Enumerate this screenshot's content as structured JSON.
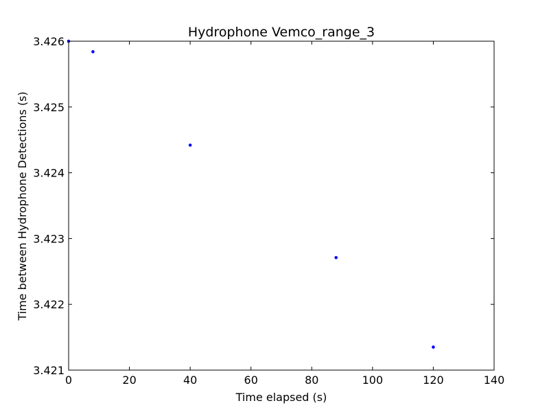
{
  "chart_data": {
    "type": "scatter",
    "title": "Hydrophone Vemco_range_3",
    "xlabel": "Time elapsed (s)",
    "ylabel": "Time between Hydrophone Detections (s)",
    "xlim": [
      0,
      140
    ],
    "ylim": [
      3.421,
      3.426
    ],
    "x_ticks": [
      0,
      20,
      40,
      60,
      80,
      100,
      120,
      140
    ],
    "x_tick_labels": [
      "0",
      "20",
      "40",
      "60",
      "80",
      "100",
      "120",
      "140"
    ],
    "y_ticks": [
      3.421,
      3.422,
      3.423,
      3.424,
      3.425,
      3.426
    ],
    "y_tick_labels": [
      "3.421",
      "3.422",
      "3.423",
      "3.424",
      "3.425",
      "3.426"
    ],
    "grid": false,
    "point_color": "#0000ff",
    "series": [
      {
        "x": [
          0,
          8,
          40,
          88,
          120
        ],
        "y": [
          3.426,
          3.42584,
          3.42442,
          3.42271,
          3.42135
        ]
      }
    ]
  }
}
